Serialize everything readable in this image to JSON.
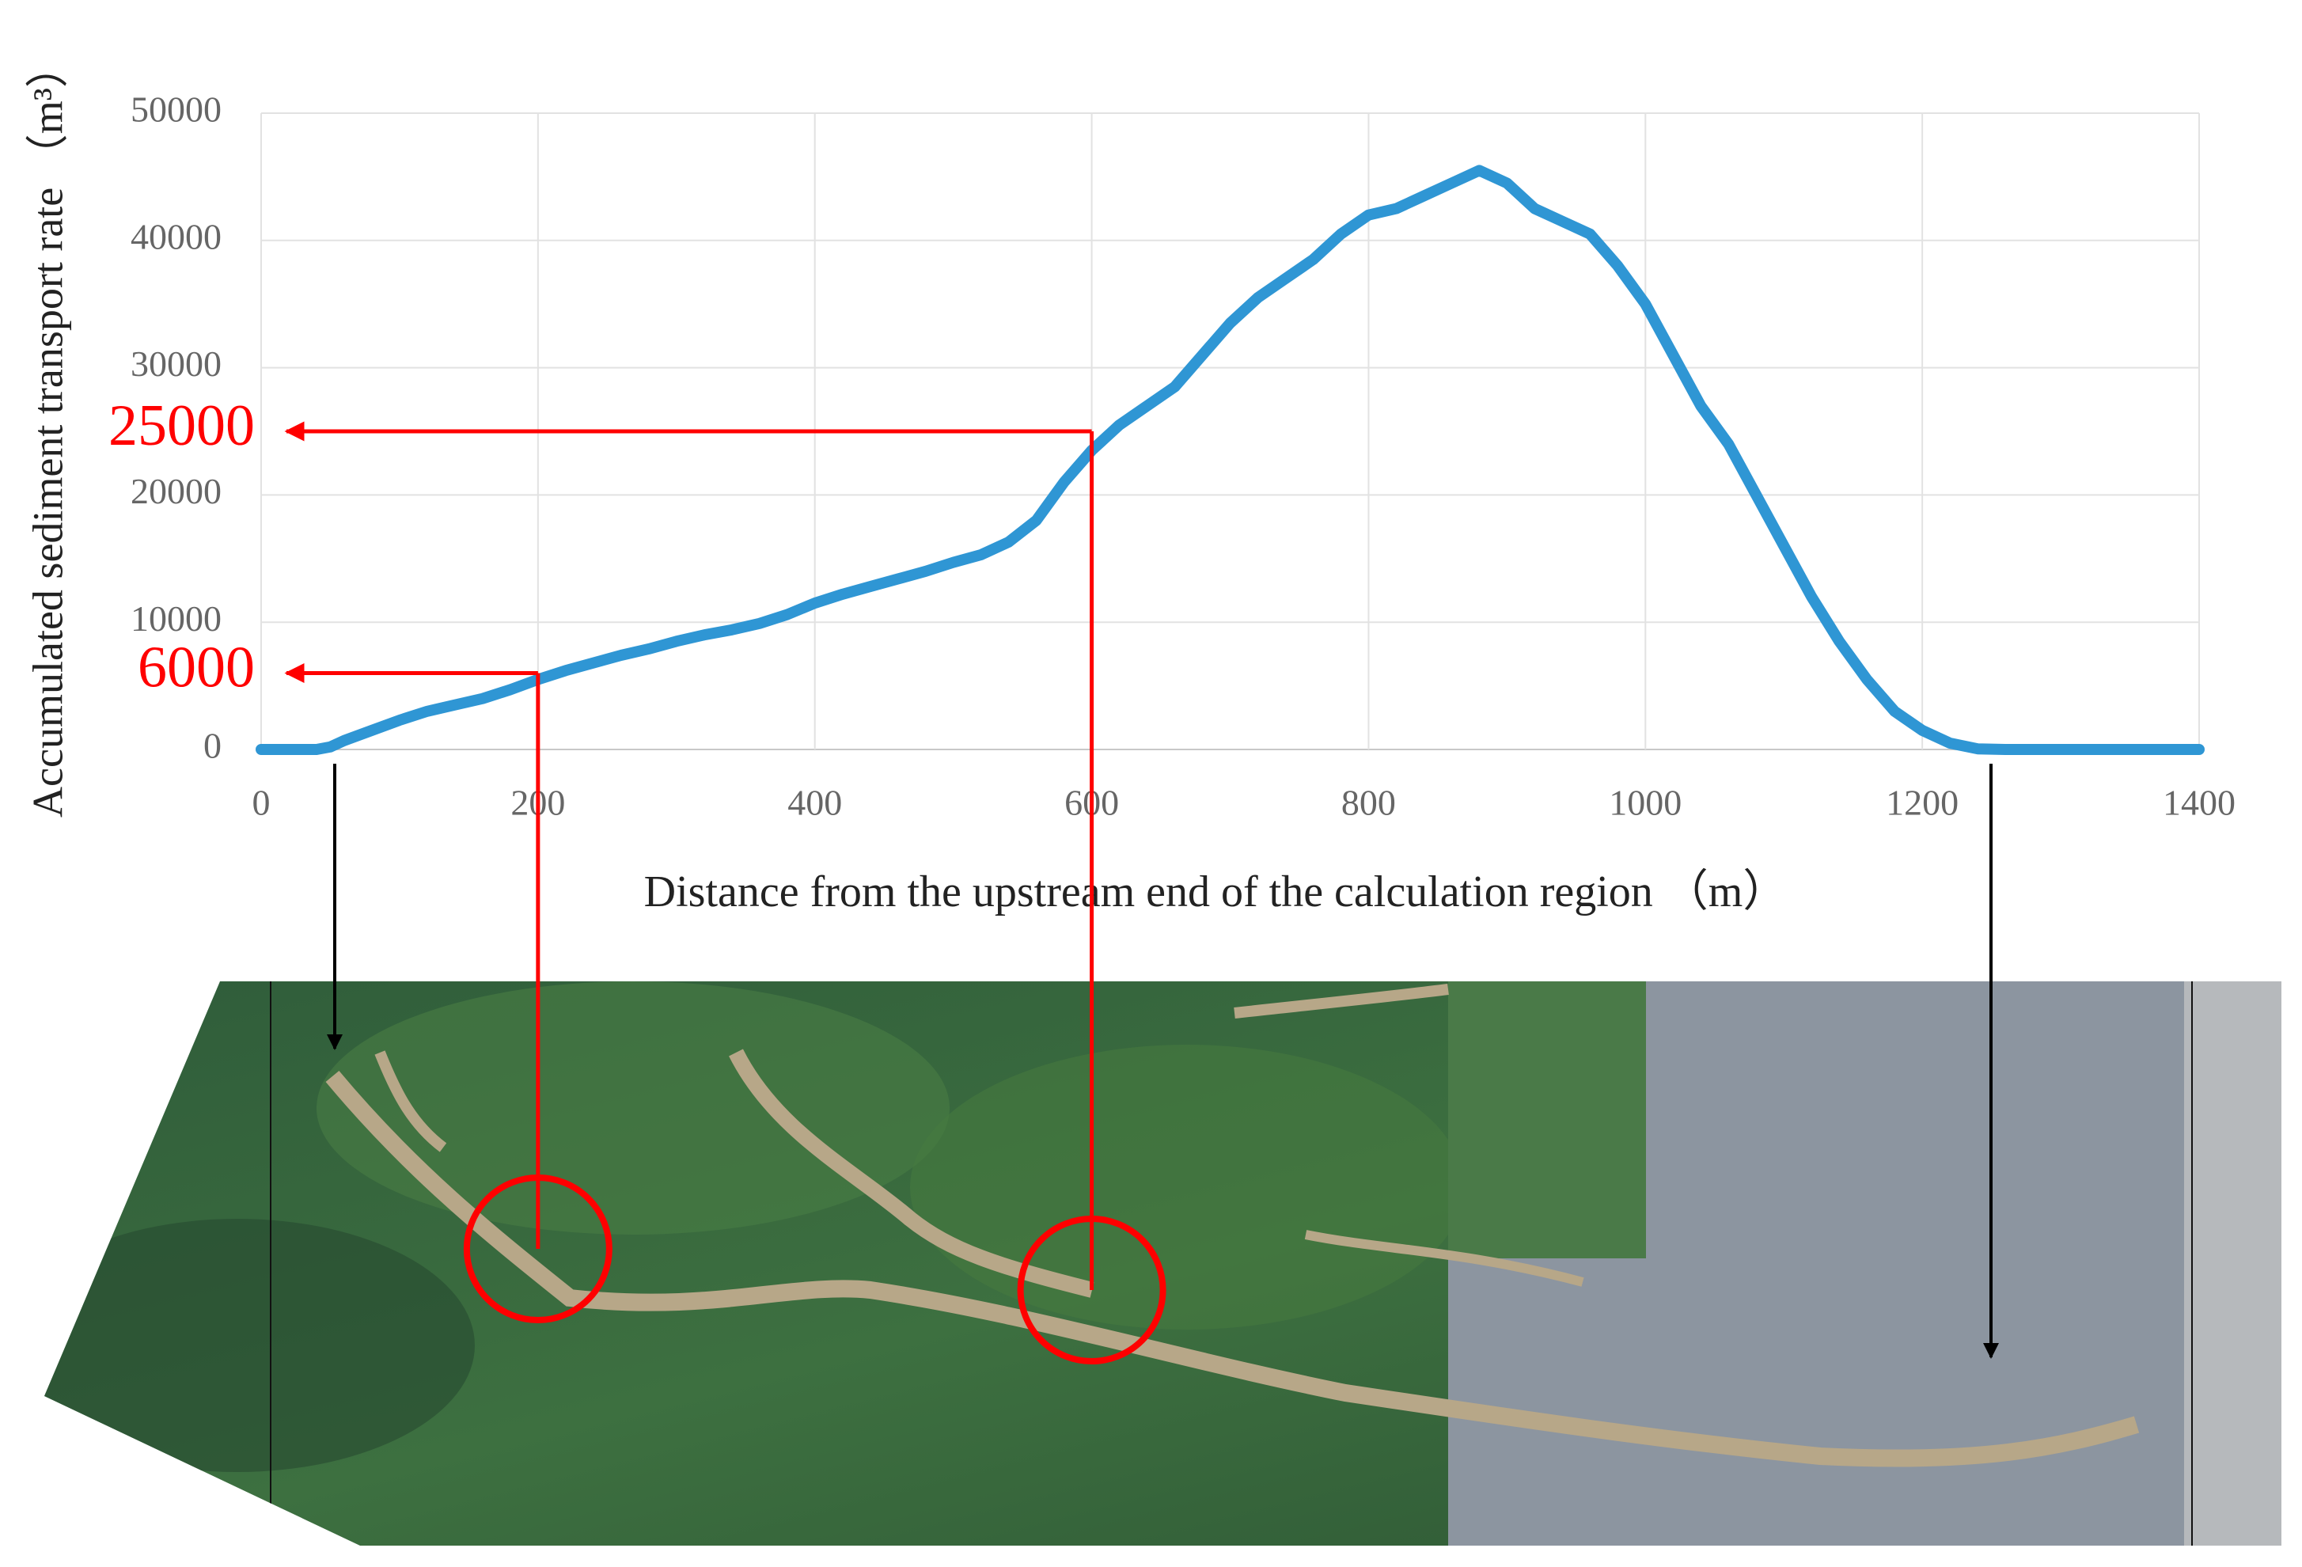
{
  "chart_data": {
    "type": "line",
    "x_label": "Distance from the upstream end of the calculation region （m）",
    "y_label": "Accumulated sediment transport rate （m³）",
    "x": [
      0,
      20,
      40,
      50,
      60,
      80,
      100,
      120,
      140,
      160,
      180,
      200,
      220,
      240,
      260,
      280,
      300,
      320,
      340,
      360,
      380,
      400,
      420,
      440,
      460,
      480,
      500,
      520,
      540,
      560,
      580,
      600,
      620,
      640,
      660,
      680,
      700,
      720,
      740,
      760,
      780,
      800,
      820,
      840,
      860,
      880,
      900,
      920,
      940,
      960,
      980,
      1000,
      1020,
      1040,
      1060,
      1080,
      1100,
      1120,
      1140,
      1160,
      1180,
      1200,
      1220,
      1240,
      1260,
      1300,
      1350,
      1400
    ],
    "series": [
      {
        "color": "#2f96d4",
        "values": [
          0,
          0,
          0,
          200,
          700,
          1500,
          2300,
          3000,
          3500,
          4000,
          4700,
          5500,
          6200,
          6800,
          7400,
          7900,
          8500,
          9000,
          9400,
          9900,
          10600,
          11500,
          12200,
          12800,
          13400,
          14000,
          14700,
          15300,
          16300,
          18000,
          21000,
          23500,
          25500,
          27000,
          28500,
          31000,
          33500,
          35500,
          37000,
          38500,
          40500,
          42000,
          42500,
          43500,
          44500,
          45500,
          44500,
          42500,
          41500,
          40500,
          38000,
          35000,
          31000,
          27000,
          24000,
          20000,
          16000,
          12000,
          8500,
          5500,
          3000,
          1500,
          500,
          50,
          0,
          0,
          0,
          0
        ]
      }
    ],
    "xlim": [
      0,
      1400
    ],
    "xticks": [
      0,
      200,
      400,
      600,
      800,
      1000,
      1200,
      1400
    ],
    "ylim": [
      0,
      50000
    ],
    "yticks": [
      0,
      10000,
      20000,
      30000,
      40000,
      50000
    ],
    "grid": true,
    "annotations": [
      {
        "value": 6000,
        "x": 200,
        "color": "#ff0000"
      },
      {
        "value": 25000,
        "x": 600,
        "color": "#ff0000"
      }
    ]
  }
}
